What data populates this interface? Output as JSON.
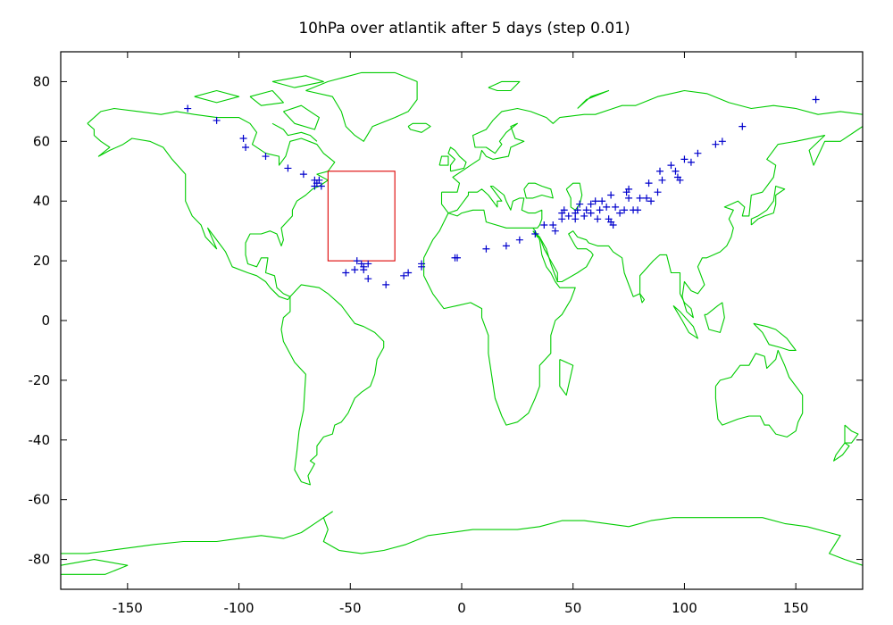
{
  "title": "10hPa over atlantik after 5 days (step 0.01)",
  "colors": {
    "coastline": "#00cc00",
    "points": "#0000cc",
    "release_box": "#dd0000",
    "frame": "#000000"
  },
  "chart_data": {
    "type": "scatter",
    "title": "10hPa over atlantik after 5 days (step 0.01)",
    "xlabel": "",
    "ylabel": "",
    "xlim": [
      -180,
      180
    ],
    "ylim": [
      -90,
      90
    ],
    "xticks": [
      -150,
      -100,
      -50,
      0,
      50,
      100,
      150
    ],
    "xtick_labels": [
      "-150",
      "-100",
      "-50",
      "0",
      "50",
      "100",
      "150"
    ],
    "yticks": [
      -80,
      -60,
      -40,
      -20,
      0,
      20,
      40,
      60,
      80
    ],
    "ytick_labels": [
      "-80",
      "-60",
      "-40",
      "-20",
      "0",
      "20",
      "40",
      "60",
      "80"
    ],
    "grid": false,
    "release_box": {
      "lon": [
        -60,
        -30
      ],
      "lat": [
        20,
        50
      ]
    },
    "points": {
      "marker": "+",
      "lon": [
        -123,
        -110,
        -98,
        -97,
        -88,
        -78,
        -71,
        -66,
        -65,
        -66,
        -63,
        -64,
        -47,
        -45,
        -44,
        -42,
        -44,
        -42,
        -48,
        -52,
        -34,
        -26,
        -24,
        -18,
        -18,
        -3,
        -2,
        11,
        20,
        26,
        33,
        37,
        41,
        42,
        45,
        45,
        46,
        48,
        51,
        51,
        52,
        53,
        55,
        56,
        58,
        58,
        60,
        61,
        62,
        63,
        65,
        66,
        67,
        67,
        68,
        69,
        71,
        73,
        74,
        75,
        75,
        77,
        79,
        80,
        83,
        84,
        85,
        88,
        89,
        90,
        94,
        96,
        97,
        98,
        100,
        103,
        106,
        114,
        117,
        126,
        159
      ],
      "lat": [
        71,
        67,
        61,
        58,
        55,
        51,
        49,
        47,
        46,
        45,
        45,
        47,
        20,
        19,
        17,
        14,
        18,
        19,
        17,
        16,
        12,
        15,
        16,
        18,
        19,
        21,
        21,
        24,
        25,
        27,
        29,
        32,
        32,
        30,
        34,
        36,
        37,
        35,
        34,
        36,
        37,
        39,
        35,
        37,
        36,
        39,
        40,
        34,
        37,
        40,
        38,
        34,
        33,
        42,
        32,
        38,
        36,
        37,
        43,
        41,
        44,
        37,
        37,
        41,
        41,
        46,
        40,
        43,
        50,
        47,
        52,
        50,
        48,
        47,
        54,
        53,
        56,
        59,
        60,
        65,
        74
      ]
    },
    "coastline_color": "green",
    "point_color": "blue",
    "box_color": "red"
  }
}
